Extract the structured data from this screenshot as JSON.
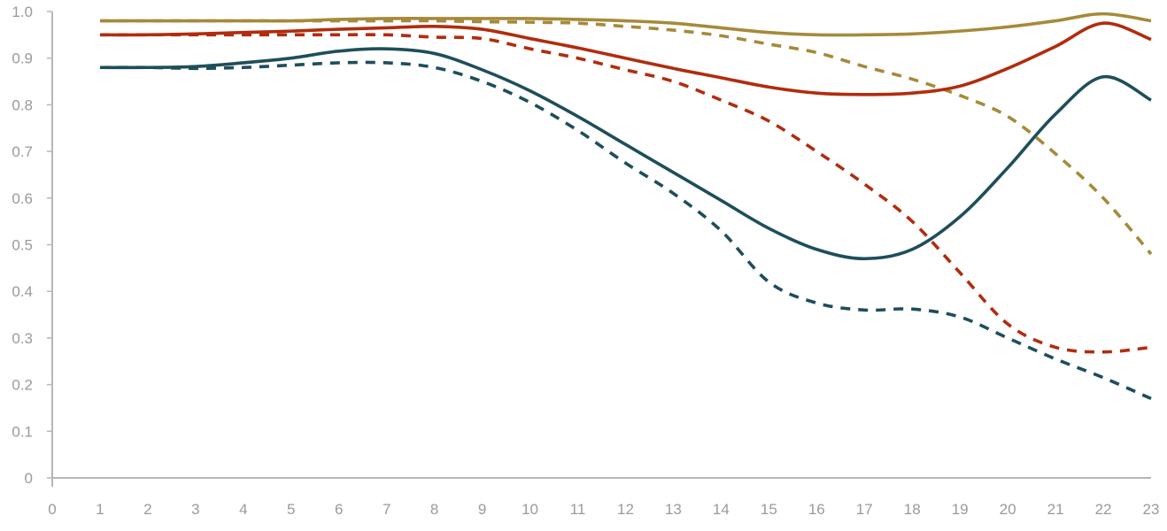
{
  "chart_data": {
    "type": "line",
    "title": "",
    "xlabel": "",
    "ylabel": "",
    "xlim": [
      0,
      23
    ],
    "ylim": [
      0,
      1.0
    ],
    "grid": false,
    "legend": "none",
    "x_ticks": [
      "0",
      "1",
      "2",
      "3",
      "4",
      "5",
      "6",
      "7",
      "8",
      "9",
      "10",
      "11",
      "12",
      "13",
      "14",
      "15",
      "16",
      "17",
      "18",
      "19",
      "20",
      "21",
      "22",
      "23"
    ],
    "y_ticks": [
      "0",
      "0.1",
      "0.2",
      "0.3",
      "0.4",
      "0.5",
      "0.6",
      "0.7",
      "0.8",
      "0.9",
      "1.0"
    ],
    "x": [
      1,
      2,
      3,
      4,
      5,
      6,
      7,
      8,
      9,
      10,
      11,
      12,
      13,
      14,
      15,
      16,
      17,
      18,
      19,
      20,
      21,
      22,
      23
    ],
    "series": [
      {
        "color": "#a68a3a",
        "dash": "solid",
        "values": [
          0.98,
          0.98,
          0.98,
          0.98,
          0.98,
          0.983,
          0.985,
          0.985,
          0.985,
          0.985,
          0.983,
          0.98,
          0.975,
          0.965,
          0.955,
          0.95,
          0.95,
          0.952,
          0.958,
          0.967,
          0.98,
          0.995,
          0.98
        ]
      },
      {
        "color": "#a68a3a",
        "dash": "dashed",
        "values": [
          0.98,
          0.98,
          0.98,
          0.98,
          0.98,
          0.98,
          0.98,
          0.98,
          0.978,
          0.977,
          0.975,
          0.968,
          0.96,
          0.948,
          0.93,
          0.912,
          0.882,
          0.855,
          0.82,
          0.775,
          0.695,
          0.6,
          0.48
        ]
      },
      {
        "color": "#b12c0e",
        "dash": "solid",
        "values": [
          0.95,
          0.95,
          0.952,
          0.955,
          0.958,
          0.962,
          0.965,
          0.968,
          0.962,
          0.942,
          0.922,
          0.9,
          0.878,
          0.858,
          0.838,
          0.825,
          0.822,
          0.825,
          0.84,
          0.878,
          0.925,
          0.975,
          0.94
        ]
      },
      {
        "color": "#b12c0e",
        "dash": "dashed",
        "values": [
          0.95,
          0.95,
          0.95,
          0.95,
          0.95,
          0.95,
          0.95,
          0.945,
          0.942,
          0.92,
          0.9,
          0.875,
          0.85,
          0.81,
          0.765,
          0.7,
          0.63,
          0.55,
          0.44,
          0.33,
          0.28,
          0.27,
          0.28
        ]
      },
      {
        "color": "#1f4e5a",
        "dash": "solid",
        "values": [
          0.88,
          0.88,
          0.882,
          0.89,
          0.9,
          0.915,
          0.92,
          0.91,
          0.875,
          0.83,
          0.775,
          0.715,
          0.655,
          0.595,
          0.535,
          0.49,
          0.47,
          0.49,
          0.56,
          0.665,
          0.78,
          0.86,
          0.81
        ]
      },
      {
        "color": "#1f4e5a",
        "dash": "dashed",
        "values": [
          0.88,
          0.88,
          0.878,
          0.88,
          0.885,
          0.89,
          0.89,
          0.88,
          0.85,
          0.805,
          0.745,
          0.675,
          0.61,
          0.53,
          0.42,
          0.375,
          0.36,
          0.362,
          0.345,
          0.3,
          0.255,
          0.215,
          0.17
        ]
      }
    ]
  }
}
